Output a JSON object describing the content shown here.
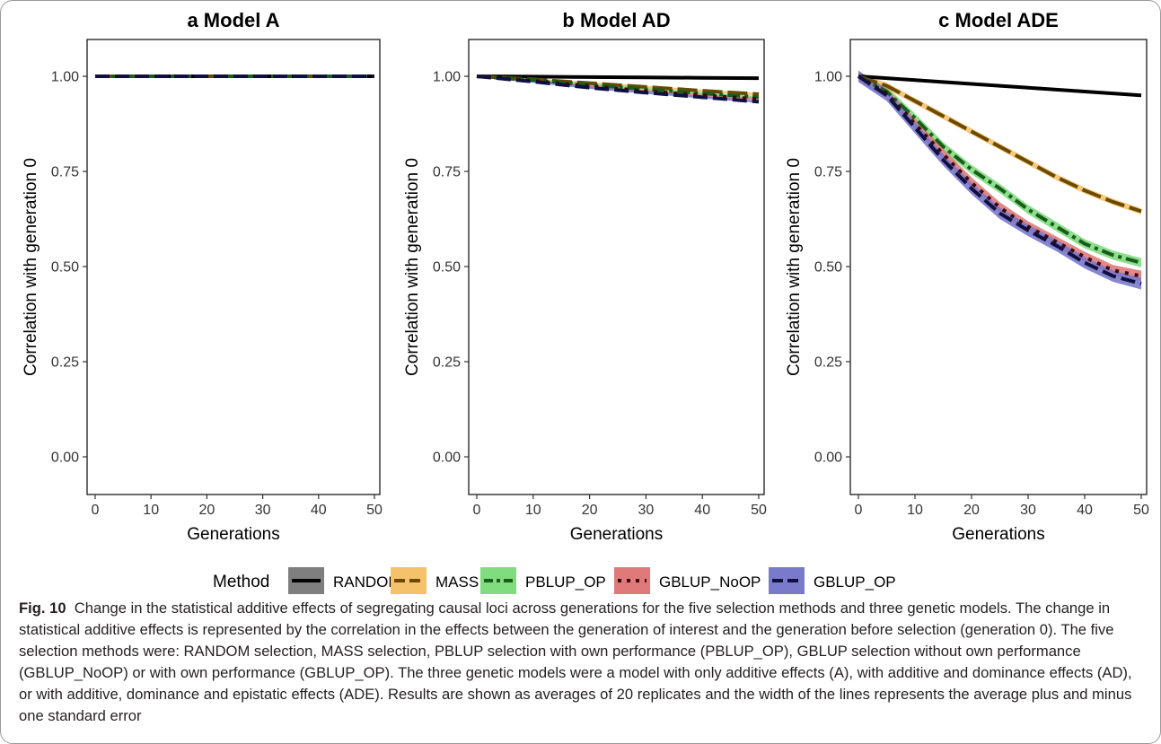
{
  "figure": {
    "legend_title": "Method",
    "caption_label": "Fig. 10",
    "caption_text": "Change in the statistical additive effects of segregating causal loci across generations for the five selection methods and three genetic models. The change in statistical additive effects is represented by the correlation in the effects between the generation of interest and the generation before selection (generation 0). The five selection methods were: RANDOM selection, MASS selection, PBLUP selection with own performance (PBLUP_OP), GBLUP selection without own performance (GBLUP_NoOP) or with own performance (GBLUP_OP). The three genetic models were a model with only additive effects (A), with additive and dominance effects (AD), or with additive, dominance and epistatic effects (ADE). Results are shown as averages of 20 replicates and the width of the lines represents the average plus and minus one standard error"
  },
  "methods": [
    {
      "name": "RANDOM",
      "line_color": "#000000",
      "band_color": "#7f7f7f",
      "dash": "none"
    },
    {
      "name": "MASS",
      "line_color": "#6b4a00",
      "band_color": "#f5c26b",
      "dash": "22 6"
    },
    {
      "name": "PBLUP_OP",
      "line_color": "#1a5c1a",
      "band_color": "#7fdc7f",
      "dash": "14 5 4 5"
    },
    {
      "name": "GBLUP_NoOP",
      "line_color": "#3a0a0a",
      "band_color": "#e07a7a",
      "dash": "4 7"
    },
    {
      "name": "GBLUP_OP",
      "line_color": "#101040",
      "band_color": "#7a7acc",
      "dash": "16 6"
    }
  ],
  "chart_data": [
    {
      "type": "line",
      "panel_letter": "a",
      "title": "Model A",
      "xlabel": "Generations",
      "ylabel": "Correlation with generation 0",
      "xlim": [
        0,
        50
      ],
      "ylim": [
        0,
        1
      ],
      "xticks": [
        "0",
        "10",
        "20",
        "30",
        "40",
        "50"
      ],
      "yticks": [
        "0.00",
        "0.25",
        "0.50",
        "0.75",
        "1.00"
      ],
      "x": [
        0,
        10,
        20,
        30,
        40,
        50
      ],
      "series": [
        {
          "name": "RANDOM",
          "values": [
            1.0,
            1.0,
            1.0,
            1.0,
            1.0,
            1.0
          ],
          "se": 0.002
        },
        {
          "name": "MASS",
          "values": [
            1.0,
            1.0,
            1.0,
            1.0,
            1.0,
            1.0
          ],
          "se": 0.002
        },
        {
          "name": "PBLUP_OP",
          "values": [
            1.0,
            1.0,
            1.0,
            1.0,
            1.0,
            1.0
          ],
          "se": 0.002
        },
        {
          "name": "GBLUP_NoOP",
          "values": [
            1.0,
            1.0,
            1.0,
            1.0,
            1.0,
            1.0
          ],
          "se": 0.002
        },
        {
          "name": "GBLUP_OP",
          "values": [
            1.0,
            1.0,
            1.0,
            1.0,
            1.0,
            1.0
          ],
          "se": 0.002
        }
      ]
    },
    {
      "type": "line",
      "panel_letter": "b",
      "title": "Model AD",
      "xlabel": "Generations",
      "ylabel": "Correlation with generation 0",
      "xlim": [
        0,
        50
      ],
      "ylim": [
        0,
        1
      ],
      "xticks": [
        "0",
        "10",
        "20",
        "30",
        "40",
        "50"
      ],
      "yticks": [
        "0.00",
        "0.25",
        "0.50",
        "0.75",
        "1.00"
      ],
      "x": [
        0,
        10,
        20,
        30,
        40,
        50
      ],
      "series": [
        {
          "name": "RANDOM",
          "values": [
            1.0,
            0.999,
            0.998,
            0.997,
            0.996,
            0.995
          ],
          "se": 0.002
        },
        {
          "name": "MASS",
          "values": [
            1.0,
            0.992,
            0.982,
            0.972,
            0.962,
            0.953
          ],
          "se": 0.003
        },
        {
          "name": "PBLUP_OP",
          "values": [
            1.0,
            0.99,
            0.978,
            0.966,
            0.955,
            0.945
          ],
          "se": 0.003
        },
        {
          "name": "GBLUP_NoOP",
          "values": [
            1.0,
            0.988,
            0.974,
            0.961,
            0.95,
            0.94
          ],
          "se": 0.003
        },
        {
          "name": "GBLUP_OP",
          "values": [
            1.0,
            0.986,
            0.97,
            0.957,
            0.945,
            0.933
          ],
          "se": 0.003
        }
      ]
    },
    {
      "type": "line",
      "panel_letter": "c",
      "title": "Model ADE",
      "xlabel": "Generations",
      "ylabel": "Correlation with generation 0",
      "xlim": [
        0,
        50
      ],
      "ylim": [
        0,
        1
      ],
      "xticks": [
        "0",
        "10",
        "20",
        "30",
        "40",
        "50"
      ],
      "yticks": [
        "0.00",
        "0.25",
        "0.50",
        "0.75",
        "1.00"
      ],
      "x": [
        0,
        5,
        10,
        15,
        20,
        25,
        30,
        35,
        40,
        45,
        50
      ],
      "series": [
        {
          "name": "RANDOM",
          "values": [
            1.0,
            0.995,
            0.99,
            0.985,
            0.98,
            0.975,
            0.97,
            0.965,
            0.96,
            0.955,
            0.95
          ],
          "se": 0.003
        },
        {
          "name": "MASS",
          "values": [
            1.0,
            0.975,
            0.935,
            0.895,
            0.855,
            0.815,
            0.775,
            0.735,
            0.7,
            0.67,
            0.645
          ],
          "se": 0.008
        },
        {
          "name": "PBLUP_OP",
          "values": [
            1.0,
            0.96,
            0.89,
            0.815,
            0.755,
            0.705,
            0.65,
            0.605,
            0.56,
            0.53,
            0.51
          ],
          "se": 0.012
        },
        {
          "name": "GBLUP_NoOP",
          "values": [
            1.0,
            0.955,
            0.875,
            0.795,
            0.72,
            0.655,
            0.605,
            0.565,
            0.525,
            0.49,
            0.475
          ],
          "se": 0.014
        },
        {
          "name": "GBLUP_OP",
          "values": [
            1.0,
            0.95,
            0.865,
            0.78,
            0.705,
            0.64,
            0.595,
            0.555,
            0.51,
            0.475,
            0.455
          ],
          "se": 0.015
        }
      ]
    }
  ]
}
